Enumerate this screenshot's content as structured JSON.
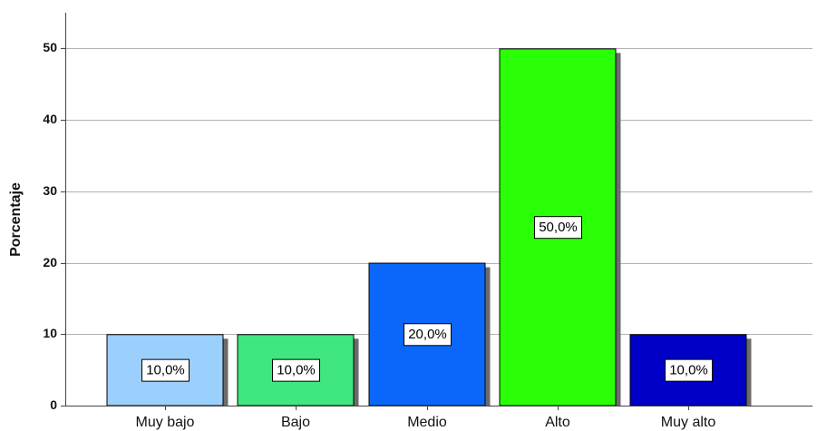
{
  "chart_data": {
    "type": "bar",
    "categories": [
      "Muy bajo",
      "Bajo",
      "Medio",
      "Alto",
      "Muy alto"
    ],
    "values": [
      10.0,
      10.0,
      20.0,
      50.0,
      10.0
    ],
    "data_labels": [
      "10,0%",
      "10,0%",
      "20,0%",
      "50,0%",
      "10,0%"
    ],
    "ylabel": "Porcentaje",
    "xlabel": "",
    "ylim": [
      0,
      55
    ],
    "yticks": [
      0,
      10,
      20,
      30,
      40,
      50
    ],
    "grid": true,
    "colors": [
      "#9bcffc",
      "#40e680",
      "#0b67fb",
      "#2bff07",
      "#0000c7"
    ],
    "shadow_color": "#6b6b6b"
  }
}
